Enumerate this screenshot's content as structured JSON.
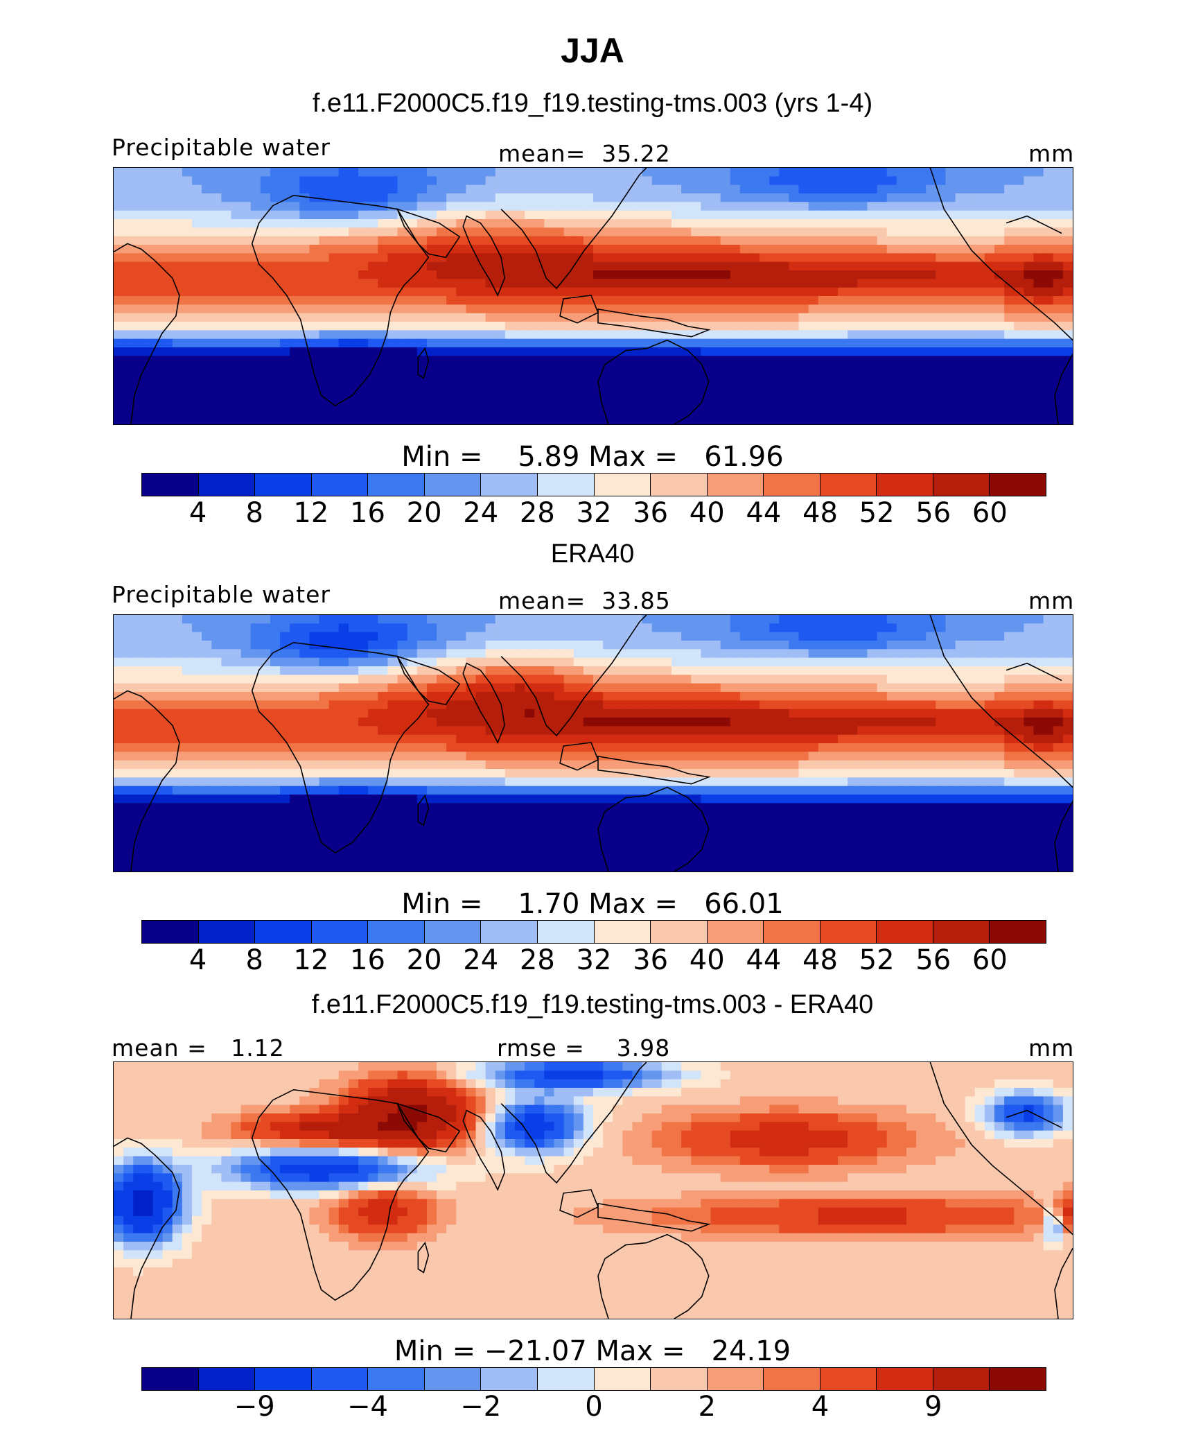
{
  "figure": {
    "title": "JJA",
    "colors": {
      "scale": [
        "#08008a",
        "#0022c8",
        "#0a3ee6",
        "#1e5af2",
        "#3c78f0",
        "#6496f0",
        "#a0bef5",
        "#d2e4fa",
        "#fde8d4",
        "#fac8ad",
        "#f79e78",
        "#f07446",
        "#e64a23",
        "#d22d10",
        "#b41e0a",
        "#8c0a05"
      ]
    }
  },
  "panels": [
    {
      "subtitle": "f.e11.F2000C5.f19_f19.testing-tms.003 (yrs 1-4)",
      "header_left": "Precipitable water",
      "header_mid": "mean=  35.22",
      "header_right": "mm",
      "minmax": "Min =    5.89 Max =   61.96",
      "colorbar_ticks": [
        "4",
        "8",
        "12",
        "16",
        "20",
        "24",
        "28",
        "32",
        "36",
        "40",
        "44",
        "48",
        "52",
        "56",
        "60"
      ],
      "field": "model"
    },
    {
      "subtitle": "ERA40",
      "header_left": "Precipitable water",
      "header_mid": "mean=  33.85",
      "header_right": "mm",
      "minmax": "Min =    1.70 Max =   66.01",
      "colorbar_ticks": [
        "4",
        "8",
        "12",
        "16",
        "20",
        "24",
        "28",
        "32",
        "36",
        "40",
        "44",
        "48",
        "52",
        "56",
        "60"
      ],
      "field": "obs"
    },
    {
      "subtitle": "f.e11.F2000C5.f19_f19.testing-tms.003 - ERA40",
      "header_left": "mean =   1.12",
      "header_mid": "rmse =    3.98",
      "header_right": "mm",
      "minmax": "Min = −21.07 Max =   24.19",
      "colorbar_ticks": [
        "−9",
        "−4",
        "−2",
        "0",
        "2",
        "4",
        "9"
      ],
      "field": "diff"
    }
  ]
}
